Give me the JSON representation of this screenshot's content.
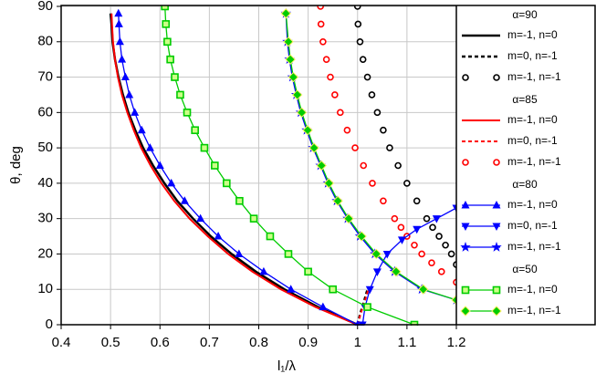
{
  "chart_data": {
    "type": "line",
    "x_label": "l₁/λ",
    "y_label": "θ, deg",
    "xlim": [
      0.4,
      1.2
    ],
    "xticks": [
      0.4,
      0.5,
      0.6,
      0.7,
      0.8,
      0.9,
      1,
      1.1,
      1.2
    ],
    "ylim": [
      0,
      90
    ],
    "yticks": [
      0,
      10,
      20,
      30,
      40,
      50,
      60,
      70,
      80,
      90
    ],
    "grid": true,
    "legend": "right",
    "groups": [
      {
        "title": "α=90",
        "series": [
          {
            "name": "m=-1, n=0",
            "color": "#000000",
            "line": "solid",
            "marker": "none",
            "x": [
              1.0,
              0.92,
              0.852,
              0.794,
              0.745,
              0.703,
              0.667,
              0.635,
              0.609,
              0.586,
              0.566,
              0.55,
              0.536,
              0.525,
              0.516,
              0.509,
              0.504,
              0.502,
              0.5
            ],
            "values": [
              0,
              5,
              10,
              15,
              20,
              25,
              30,
              35,
              40,
              45,
              50,
              55,
              60,
              65,
              70,
              75,
              80,
              85,
              88
            ]
          },
          {
            "name": "m=0, n=-1",
            "color": "#000000",
            "line": "dashed",
            "marker": "none",
            "x": [
              1.0,
              1.005,
              1.012,
              1.02
            ],
            "values": [
              0,
              3,
              6,
              10
            ]
          },
          {
            "name": "m=-1, n=-1",
            "color": "#000000",
            "line": "none",
            "marker": "circle",
            "x": [
              1.0,
              1.001,
              1.005,
              1.011,
              1.02,
              1.029,
              1.04,
              1.052,
              1.065,
              1.082,
              1.1,
              1.12,
              1.14,
              1.152,
              1.165,
              1.178,
              1.19,
              1.2
            ],
            "values": [
              90,
              85,
              80,
              75,
              70,
              65,
              60,
              55,
              50,
              45,
              40,
              35,
              30,
              27.5,
              25,
              22.5,
              20,
              17
            ]
          }
        ]
      },
      {
        "title": "α=85",
        "series": [
          {
            "name": "m=-1, n=0",
            "color": "#ff0000",
            "line": "solid",
            "marker": "none",
            "x": [
              1.0,
              0.915,
              0.845,
              0.787,
              0.738,
              0.697,
              0.66,
              0.629,
              0.603,
              0.581,
              0.562,
              0.547,
              0.534,
              0.523,
              0.515,
              0.509,
              0.505,
              0.503,
              0.502
            ],
            "values": [
              0,
              5,
              10,
              15,
              20,
              25,
              30,
              35,
              40,
              45,
              50,
              55,
              60,
              65,
              70,
              75,
              80,
              85,
              88
            ]
          },
          {
            "name": "m=0, n=-1",
            "color": "#ff0000",
            "line": "dashed",
            "marker": "none",
            "x": [
              1.0,
              1.006,
              1.013,
              1.022
            ],
            "values": [
              0,
              3,
              6,
              10
            ]
          },
          {
            "name": "m=-1, n=-1",
            "color": "#ff0000",
            "line": "none",
            "marker": "circle",
            "x": [
              0.925,
              0.926,
              0.93,
              0.937,
              0.945,
              0.954,
              0.965,
              0.979,
              0.995,
              1.012,
              1.03,
              1.052,
              1.075,
              1.088,
              1.1,
              1.115,
              1.13,
              1.15,
              1.17,
              1.2
            ],
            "values": [
              90,
              85,
              80,
              75,
              70,
              65,
              60,
              55,
              50,
              45,
              40,
              35,
              30,
              27.5,
              25,
              22.5,
              20,
              17.5,
              15,
              12
            ]
          }
        ]
      },
      {
        "title": "α=80",
        "series": [
          {
            "name": "m=-1, n=0",
            "color": "#0000ff",
            "line": "solid",
            "marker": "triangle-up",
            "x": [
              1.0,
              0.93,
              0.865,
              0.81,
              0.76,
              0.718,
              0.682,
              0.65,
              0.623,
              0.6,
              0.58,
              0.563,
              0.549,
              0.538,
              0.53,
              0.523,
              0.519,
              0.517,
              0.516
            ],
            "values": [
              0,
              5,
              10,
              15,
              20,
              25,
              30,
              35,
              40,
              45,
              50,
              55,
              60,
              65,
              70,
              75,
              80,
              85,
              88
            ]
          },
          {
            "name": "m=0, n=-1",
            "color": "#0000ff",
            "line": "solid",
            "marker": "triangle-down",
            "x": [
              1.01,
              1.015,
              1.025,
              1.04,
              1.06,
              1.09,
              1.12,
              1.16,
              1.2
            ],
            "values": [
              0,
              5,
              10,
              15,
              20,
              24,
              27,
              30,
              33
            ]
          },
          {
            "name": "m=-1, n=-1",
            "color": "#0000ff",
            "line": "solid",
            "marker": "star",
            "x": [
              0.855,
              0.858,
              0.862,
              0.868,
              0.876,
              0.885,
              0.897,
              0.91,
              0.925,
              0.94,
              0.958,
              0.98,
              1.005,
              1.035,
              1.075,
              1.13,
              1.2
            ],
            "values": [
              88,
              80,
              75,
              70,
              65,
              60,
              55,
              50,
              45,
              40,
              35,
              30,
              25,
              20,
              15,
              10,
              7
            ]
          }
        ]
      },
      {
        "title": "α=50",
        "series": [
          {
            "name": "m=-1, n=0",
            "color": "#00cc00",
            "line": "solid",
            "marker": "square",
            "x": [
              0.61,
              0.612,
              0.615,
              0.621,
              0.63,
              0.641,
              0.655,
              0.671,
              0.69,
              0.711,
              0.735,
              0.761,
              0.79,
              0.823,
              0.86,
              0.9,
              0.95,
              1.02,
              1.115
            ],
            "values": [
              90,
              85,
              80,
              75,
              70,
              65,
              60,
              55,
              50,
              45,
              40,
              35,
              30,
              25,
              20,
              15,
              10,
              5,
              0
            ]
          },
          {
            "name": "m=-1, n=-1",
            "color": "#00cc00",
            "line": "solid",
            "marker": "diamond",
            "x": [
              0.855,
              0.86,
              0.864,
              0.87,
              0.878,
              0.887,
              0.899,
              0.912,
              0.927,
              0.942,
              0.96,
              0.982,
              1.008,
              1.038,
              1.078,
              1.133,
              1.2
            ],
            "values": [
              88,
              80,
              75,
              70,
              65,
              60,
              55,
              50,
              45,
              40,
              35,
              30,
              25,
              20,
              15,
              10,
              7
            ]
          }
        ]
      }
    ]
  }
}
